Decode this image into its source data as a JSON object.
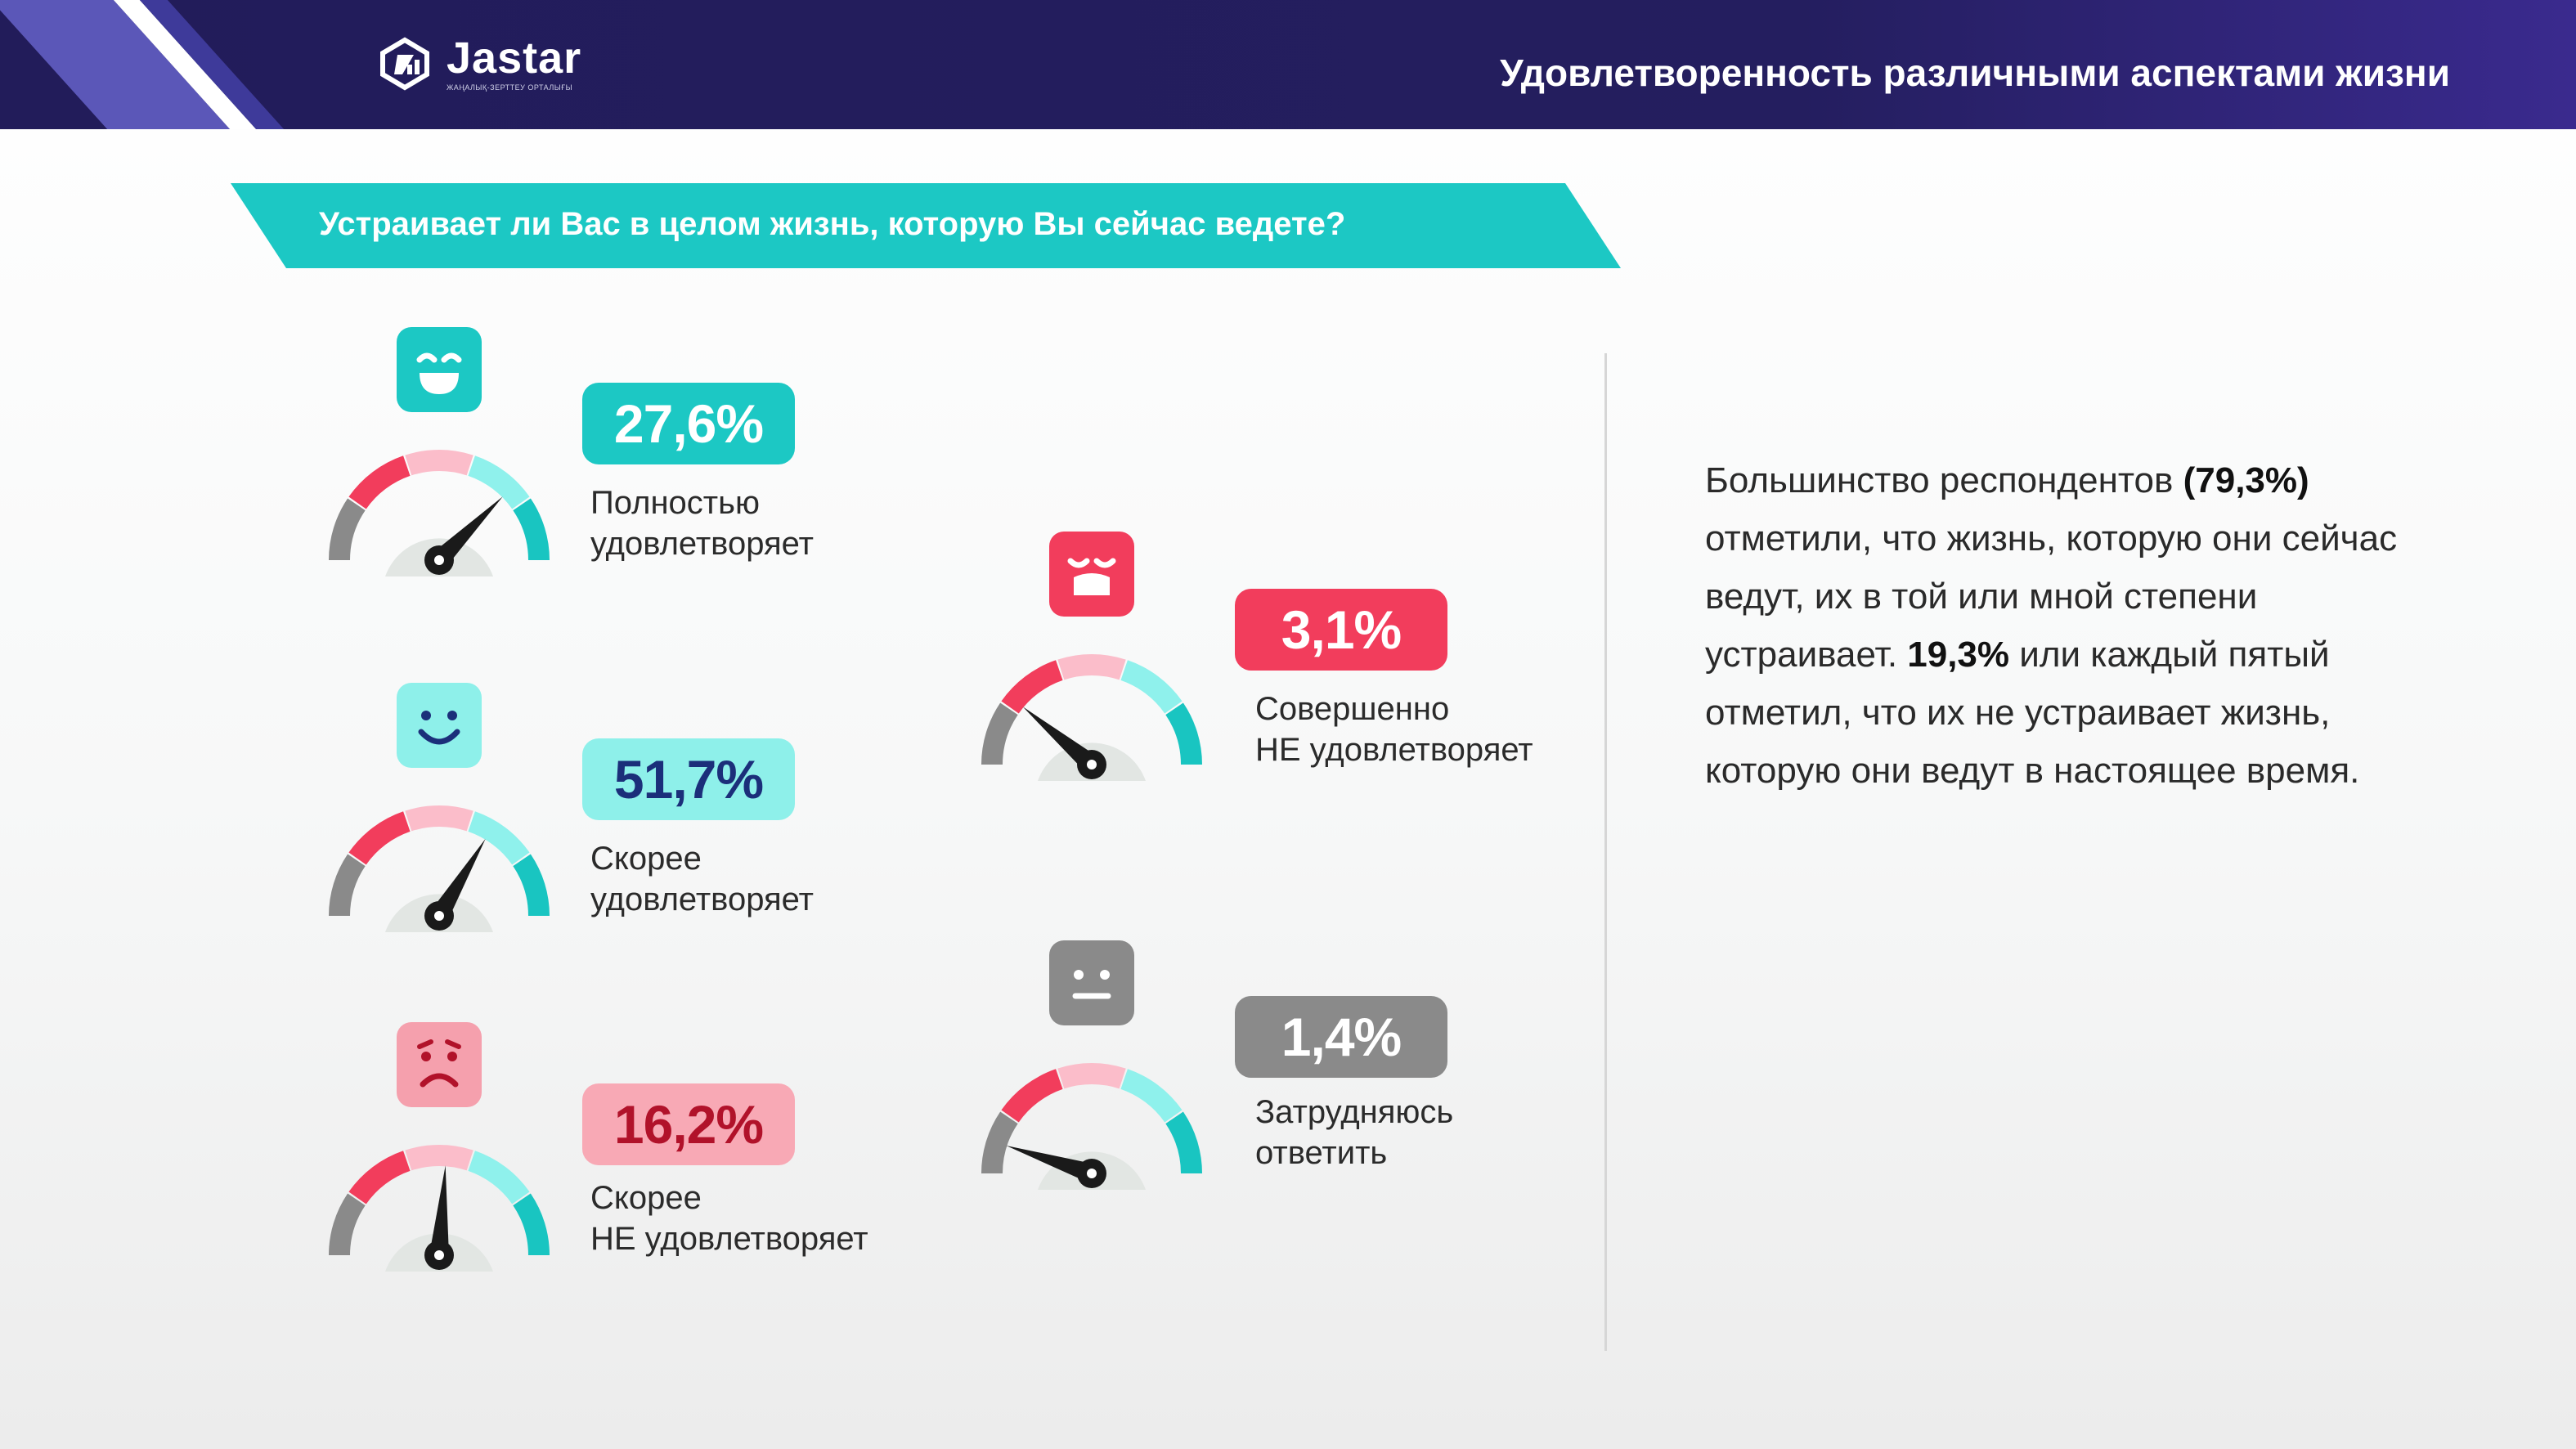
{
  "header": {
    "logo_name": "Jastar",
    "logo_tagline": "ЖАҢАЛЫҚ-ЗЕРТТЕУ ОРТАЛЫҒЫ",
    "title": "Удовлетворенность различными аспектами жизни"
  },
  "question": "Устраивает ли Вас в целом жизнь, которую Вы сейчас ведете?",
  "colors": {
    "header_bg": "#221c5a",
    "accent_teal": "#1cc8c4",
    "gauge_gray": "#8a8a8a",
    "gauge_red": "#f23d5c",
    "gauge_pink": "#fbbdca",
    "gauge_light_teal": "#8ff1ec",
    "gauge_teal": "#19c5c1"
  },
  "answers": [
    {
      "id": "fully",
      "value": "27,6%",
      "label_line1": "Полностью",
      "label_line2": "удовлетворяет",
      "emoji": "laughing-face-icon",
      "emoji_color": "#1cc8c4",
      "pill_bg": "#1cc8c4",
      "pill_fg": "#ffffff",
      "needle_deg": 135
    },
    {
      "id": "rather_yes",
      "value": "51,7%",
      "label_line1": "Скорее",
      "label_line2": "удовлетворяет",
      "emoji": "smiling-face-icon",
      "emoji_color": "#8ef0ea",
      "pill_bg": "#8ef0ea",
      "pill_fg": "#1b2f7a",
      "needle_deg": 121
    },
    {
      "id": "rather_no",
      "value": "16,2%",
      "label_line1": "Скорее",
      "label_line2": "НЕ удовлетворяет",
      "emoji": "frowning-face-icon",
      "emoji_color": "#f5a0ad",
      "pill_bg": "#f8a9b5",
      "pill_fg": "#b1122a",
      "needle_deg": 94
    },
    {
      "id": "not_at_all",
      "value": "3,1%",
      "label_line1": "Совершенно",
      "label_line2": "НЕ удовлетворяет",
      "emoji": "crying-face-icon",
      "emoji_color": "#f23d5c",
      "pill_bg": "#f23d5c",
      "pill_fg": "#ffffff",
      "needle_deg": 40
    },
    {
      "id": "hard_to_say",
      "value": "1,4%",
      "label_line1": "Затрудняюсь",
      "label_line2": "ответить",
      "emoji": "neutral-face-icon",
      "emoji_color": "#8a8a8a",
      "pill_bg": "#8a8a8a",
      "pill_fg": "#ffffff",
      "needle_deg": 18
    }
  ],
  "summary": {
    "p1": "Большинство респондентов ",
    "b1": "(79,3%)",
    "p2": " отметили, что жизнь, которую они сейчас ведут, их в той или мной степени устраивает. ",
    "b2": "19,3%",
    "p3": " или каждый пятый отметил, что их не устраивает жизнь, которую они ведут в настоящее время."
  }
}
